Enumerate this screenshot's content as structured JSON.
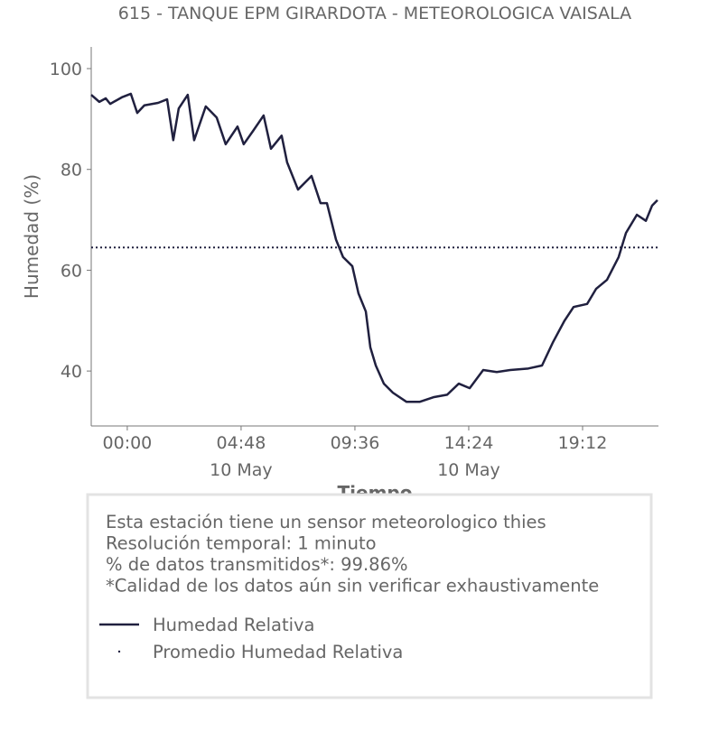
{
  "chart_data": {
    "type": "line",
    "title": "615 - TANQUE EPM GIRARDOTA - METEOROLOGICA VAISALA",
    "ylabel": "Humedad (%)",
    "xlabel": "Tiempo",
    "x": [
      -1.52,
      -1.18,
      -0.91,
      -0.72,
      -0.23,
      0.15,
      0.42,
      0.72,
      1.3,
      1.68,
      1.94,
      2.17,
      2.55,
      2.82,
      3.31,
      3.77,
      4.15,
      4.65,
      4.91,
      5.3,
      5.75,
      6.06,
      6.51,
      6.74,
      7.2,
      7.77,
      8.15,
      8.42,
      8.8,
      9.1,
      9.49,
      9.75,
      10.06,
      10.25,
      10.48,
      10.82,
      11.2,
      11.77,
      12.34,
      12.91,
      13.49,
      13.98,
      14.44,
      15.01,
      15.58,
      16.15,
      16.91,
      17.49,
      17.94,
      18.44,
      18.82,
      19.39,
      19.77,
      20.23,
      20.72,
      21.03,
      21.49,
      21.87,
      22.13,
      22.36
    ],
    "series": [
      {
        "name": "Humedad Relativa",
        "color": "#20203f",
        "values": [
          94.8,
          93.4,
          94.1,
          93.0,
          94.3,
          95.0,
          91.2,
          92.7,
          93.2,
          93.9,
          85.8,
          92.1,
          94.8,
          85.8,
          92.5,
          90.3,
          85.0,
          88.5,
          85.0,
          87.6,
          90.7,
          84.1,
          86.7,
          81.4,
          76.0,
          78.7,
          73.3,
          73.3,
          66.1,
          62.6,
          60.8,
          55.4,
          51.8,
          44.7,
          41.1,
          37.5,
          35.7,
          33.9,
          33.9,
          34.8,
          35.3,
          37.5,
          36.6,
          40.2,
          39.8,
          40.2,
          40.5,
          41.1,
          45.6,
          50.0,
          52.7,
          53.3,
          56.3,
          58.1,
          62.6,
          67.4,
          71.0,
          69.8,
          72.8,
          73.9
        ]
      }
    ],
    "reference_lines": [
      {
        "name": "Promedio Humedad Relativa",
        "value": 64.5,
        "color": "#20203f",
        "style": "dotted"
      }
    ],
    "xlim": [
      -1.52,
      22.4
    ],
    "ylim": [
      29.1,
      104.3
    ],
    "xticks": [
      {
        "value": 0,
        "label": "00:00"
      },
      {
        "value": 4.8,
        "label": "04:48"
      },
      {
        "value": 9.6,
        "label": "09:36"
      },
      {
        "value": 14.4,
        "label": "14:24"
      },
      {
        "value": 19.2,
        "label": "19:12"
      }
    ],
    "xticks_secondary": [
      {
        "value": 4.8,
        "label": "10 May"
      },
      {
        "value": 14.4,
        "label": "10 May"
      }
    ],
    "yticks": [
      40,
      60,
      80,
      100
    ],
    "notes": [
      "Esta estación tiene un sensor meteorologico thies",
      "Resolución temporal: 1 minuto",
      "% de datos transmitidos*: 99.86%",
      "*Calidad de los datos aún sin verificar exhaustivamente"
    ]
  }
}
